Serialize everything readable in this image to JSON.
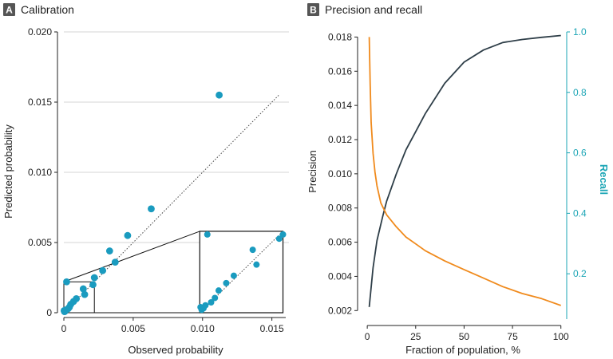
{
  "colors": {
    "dot": "#1a9bbf",
    "precision_line": "#2e3e48",
    "recall_line": "#f08a1c",
    "recall_axis": "#1ba5b5",
    "grid": "#d6d6d6",
    "axis": "#222222",
    "badge_bg": "#555555"
  },
  "chart_data": [
    {
      "type": "scatter",
      "panel_letter": "A",
      "title": "Calibration",
      "xlabel": "Observed probability",
      "ylabel": "Predicted probability",
      "xlim": [
        0,
        0.016
      ],
      "ylim": [
        0,
        0.02
      ],
      "xticks": [
        0,
        0.005,
        0.01,
        0.015
      ],
      "xtick_labels": [
        "0",
        "0.005",
        "0.010",
        "0.015"
      ],
      "yticks": [
        0,
        0.005,
        0.01,
        0.015,
        0.02
      ],
      "ytick_labels": [
        "0",
        "0.005",
        "0.010",
        "0.015",
        "0.020"
      ],
      "grid": "horizontal",
      "reference_line": {
        "style": "dotted",
        "from": [
          0,
          0
        ],
        "to": [
          0.0155,
          0.0155
        ]
      },
      "points": [
        {
          "x": 2e-05,
          "y": 0.00015
        },
        {
          "x": 5e-05,
          "y": 8e-05
        },
        {
          "x": 0.0001,
          "y": 0.00012
        },
        {
          "x": 0.00015,
          "y": 0.0002
        },
        {
          "x": 0.0002,
          "y": 0.0022
        },
        {
          "x": 0.0003,
          "y": 0.00028
        },
        {
          "x": 0.0004,
          "y": 0.0004
        },
        {
          "x": 0.0005,
          "y": 0.0006
        },
        {
          "x": 0.0007,
          "y": 0.0008
        },
        {
          "x": 0.0009,
          "y": 0.001
        },
        {
          "x": 0.0014,
          "y": 0.0017
        },
        {
          "x": 0.0015,
          "y": 0.0013
        },
        {
          "x": 0.0021,
          "y": 0.002
        },
        {
          "x": 0.0022,
          "y": 0.0025
        },
        {
          "x": 0.0028,
          "y": 0.003
        },
        {
          "x": 0.0033,
          "y": 0.0044
        },
        {
          "x": 0.0037,
          "y": 0.0036
        },
        {
          "x": 0.0046,
          "y": 0.0055
        },
        {
          "x": 0.0063,
          "y": 0.0074
        },
        {
          "x": 0.0112,
          "y": 0.0155
        }
      ],
      "inset": {
        "zoom_xlim": [
          0,
          0.0022
        ],
        "zoom_ylim": [
          0,
          0.0022
        ],
        "x_range_on_axis": [
          0.0098,
          0.0158
        ],
        "y_range_on_axis": [
          0,
          0.0058
        ],
        "xticks": [
          0.01
        ],
        "xtick_labels": [
          "0.010"
        ]
      }
    },
    {
      "type": "line",
      "panel_letter": "B",
      "title": "Precision and recall",
      "xlabel": "Fraction of population, %",
      "ylabel": "Precision",
      "y2label": "Recall",
      "xlim": [
        -5,
        103
      ],
      "ylim": [
        0.0015,
        0.0183
      ],
      "y2lim": [
        0.05,
        1.0
      ],
      "xticks": [
        0,
        25,
        50,
        75,
        100
      ],
      "xtick_labels": [
        "0",
        "25",
        "50",
        "75",
        "100"
      ],
      "yticks": [
        0.002,
        0.004,
        0.006,
        0.008,
        0.01,
        0.012,
        0.014,
        0.016,
        0.018
      ],
      "ytick_labels": [
        "0.002",
        "0.004",
        "0.006",
        "0.008",
        "0.010",
        "0.012",
        "0.014",
        "0.016",
        "0.018"
      ],
      "y2ticks": [
        0.2,
        0.4,
        0.6,
        0.8,
        1.0
      ],
      "y2tick_labels": [
        "0.2",
        "0.4",
        "0.6",
        "0.8",
        "1.0"
      ],
      "grid": "none",
      "series": [
        {
          "axis": "y2",
          "color_key": "precision_line",
          "x": [
            1,
            3,
            5,
            8,
            10,
            15,
            20,
            25,
            30,
            40,
            50,
            60,
            70,
            80,
            90,
            100
          ],
          "values": [
            0.09,
            0.22,
            0.31,
            0.39,
            0.44,
            0.53,
            0.61,
            0.67,
            0.73,
            0.83,
            0.9,
            0.94,
            0.965,
            0.975,
            0.982,
            0.988
          ]
        },
        {
          "axis": "y",
          "color_key": "recall_line",
          "x": [
            1,
            1.5,
            2,
            3,
            4,
            5,
            7,
            10,
            15,
            20,
            25,
            30,
            40,
            50,
            60,
            70,
            80,
            90,
            100
          ],
          "values": [
            0.018,
            0.0152,
            0.013,
            0.0112,
            0.0101,
            0.0093,
            0.0083,
            0.0076,
            0.0069,
            0.0063,
            0.0059,
            0.0055,
            0.0049,
            0.0044,
            0.0039,
            0.0034,
            0.003,
            0.0027,
            0.0023
          ]
        }
      ]
    }
  ]
}
